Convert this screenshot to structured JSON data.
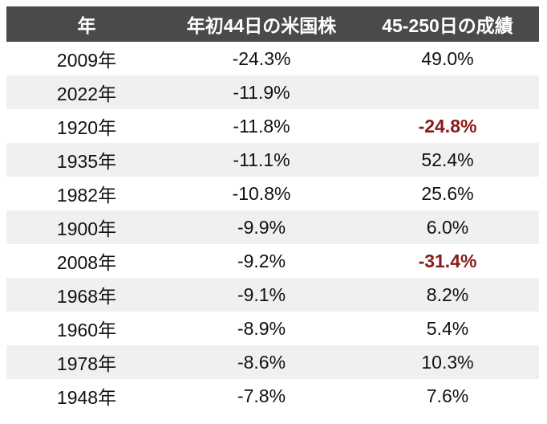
{
  "table": {
    "header": [
      "年",
      "年初44日の米国株",
      "45-250日の成績"
    ],
    "rows": [
      [
        "2009年",
        "-24.3%",
        "49.0%"
      ],
      [
        "2022年",
        "-11.9%",
        null
      ],
      [
        "1920年",
        "-11.8%",
        {
          "text": "-24.8%",
          "color": "#8b1a1a",
          "bold": true
        }
      ],
      [
        "1935年",
        "-11.1%",
        "52.4%"
      ],
      [
        "1982年",
        "-10.8%",
        "25.6%"
      ],
      [
        "1900年",
        "-9.9%",
        "6.0%"
      ],
      [
        "2008年",
        "-9.2%",
        {
          "text": "-31.4%",
          "color": "#8b1a1a",
          "bold": true
        }
      ],
      [
        "1968年",
        "-9.1%",
        "8.2%"
      ],
      [
        "1960年",
        "-8.9%",
        "5.4%"
      ],
      [
        "1978年",
        "-8.6%",
        "10.3%"
      ],
      [
        "1948年",
        "-7.8%",
        "7.6%"
      ]
    ],
    "header_color": "#4a4a4a",
    "stripe_color": "#f0f0f0"
  }
}
